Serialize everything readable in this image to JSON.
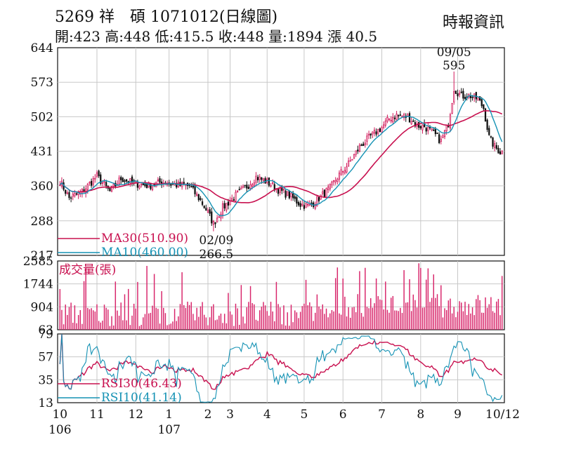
{
  "header": {
    "title": "5269 祥　碩 1071012(日線圖)",
    "quote": "開:423 高:448 低:415.5 收:448 量:1894 漲 40.5",
    "source": "時報資訊"
  },
  "colors": {
    "up": "#d2185a",
    "down": "#111111",
    "ma30": "#c8104f",
    "ma10": "#1592b4",
    "volume": "#d8246a",
    "grid": "#c8c8c8"
  },
  "chart_data": [
    {
      "type": "candlestick",
      "name": "price",
      "y_ticks": [
        644,
        573,
        502,
        431,
        360,
        288,
        217
      ],
      "ylim": [
        217,
        644
      ],
      "x_month_labels": [
        "10",
        "11",
        "12",
        "1",
        "2",
        "3",
        "4",
        "5",
        "6",
        "7",
        "8",
        "9",
        "10/12"
      ],
      "x_month_positions": [
        0,
        20,
        41,
        59,
        80,
        92,
        112,
        132,
        153,
        174,
        195,
        215,
        235
      ],
      "x_year_labels": [
        "106",
        "107"
      ],
      "x_year_positions": [
        0,
        59
      ],
      "n_days": 240,
      "annotations": [
        {
          "text": "09/05",
          "value": "595",
          "index": 213,
          "y": 595
        },
        {
          "text": "02/09",
          "value": "266.5",
          "index": 83,
          "y": 266.5
        }
      ],
      "legend": [
        {
          "label": "MA30(510.90)",
          "color": "#c8104f"
        },
        {
          "label": "MA10(460.00)",
          "color": "#1592b4"
        }
      ],
      "close_anchors": [
        [
          0,
          370
        ],
        [
          5,
          335
        ],
        [
          12,
          348
        ],
        [
          20,
          380
        ],
        [
          27,
          348
        ],
        [
          33,
          375
        ],
        [
          40,
          365
        ],
        [
          48,
          360
        ],
        [
          55,
          368
        ],
        [
          62,
          362
        ],
        [
          70,
          360
        ],
        [
          76,
          330
        ],
        [
          80,
          305
        ],
        [
          83,
          282
        ],
        [
          88,
          315
        ],
        [
          95,
          340
        ],
        [
          102,
          362
        ],
        [
          106,
          378
        ],
        [
          112,
          368
        ],
        [
          118,
          352
        ],
        [
          124,
          340
        ],
        [
          130,
          322
        ],
        [
          135,
          318
        ],
        [
          140,
          335
        ],
        [
          146,
          355
        ],
        [
          150,
          378
        ],
        [
          156,
          405
        ],
        [
          162,
          440
        ],
        [
          168,
          462
        ],
        [
          174,
          480
        ],
        [
          178,
          498
        ],
        [
          182,
          505
        ],
        [
          188,
          502
        ],
        [
          193,
          484
        ],
        [
          197,
          482
        ],
        [
          202,
          468
        ],
        [
          206,
          452
        ],
        [
          210,
          488
        ],
        [
          213,
          560
        ],
        [
          217,
          545
        ],
        [
          222,
          545
        ],
        [
          226,
          538
        ],
        [
          229,
          520
        ],
        [
          232,
          460
        ],
        [
          235,
          440
        ],
        [
          238,
          430
        ]
      ]
    },
    {
      "type": "bar",
      "name": "volume",
      "title": "成交量(張)",
      "y_ticks": [
        2585,
        1744,
        904,
        63
      ],
      "ylim": [
        63,
        2585
      ]
    },
    {
      "type": "line",
      "name": "RSI",
      "y_ticks": [
        79,
        57,
        35,
        13
      ],
      "ylim": [
        13,
        79
      ],
      "legend": [
        {
          "label": "RSI30(46.43)",
          "color": "#c8104f"
        },
        {
          "label": "RSI10(41.14)",
          "color": "#1592b4"
        }
      ]
    }
  ]
}
